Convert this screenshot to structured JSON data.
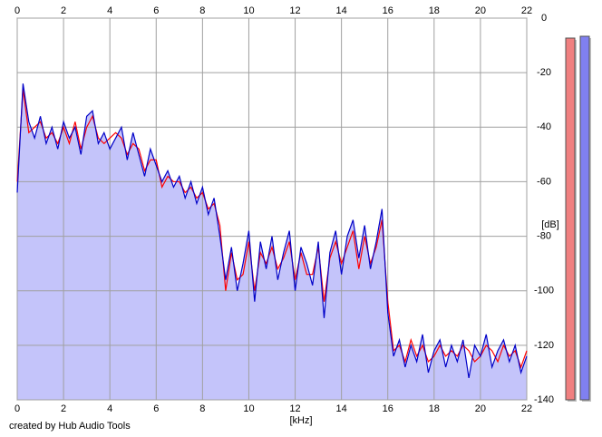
{
  "chart_data": {
    "type": "line",
    "x_label": "[kHz]",
    "y_label": "[dB]",
    "footer": "created by Hub Audio Tools",
    "xlim": [
      0,
      22
    ],
    "xticks": [
      0,
      2,
      4,
      6,
      8,
      10,
      12,
      14,
      16,
      18,
      20,
      22
    ],
    "ylim": [
      -140,
      0
    ],
    "yticks": [
      0,
      -20,
      -40,
      -60,
      -80,
      -100,
      -120,
      -140
    ],
    "grid": true,
    "area_color": "#c4c4fa",
    "x": [
      0,
      0.25,
      0.5,
      0.75,
      1,
      1.25,
      1.5,
      1.75,
      2,
      2.25,
      2.5,
      2.75,
      3,
      3.25,
      3.5,
      3.75,
      4,
      4.25,
      4.5,
      4.75,
      5,
      5.25,
      5.5,
      5.75,
      6,
      6.25,
      6.5,
      6.75,
      7,
      7.25,
      7.5,
      7.75,
      8,
      8.25,
      8.5,
      8.75,
      9,
      9.25,
      9.5,
      9.75,
      10,
      10.25,
      10.5,
      10.75,
      11,
      11.25,
      11.5,
      11.75,
      12,
      12.25,
      12.5,
      12.75,
      13,
      13.25,
      13.5,
      13.75,
      14,
      14.25,
      14.5,
      14.75,
      15,
      15.25,
      15.5,
      15.75,
      16,
      16.25,
      16.5,
      16.75,
      17,
      17.25,
      17.5,
      17.75,
      18,
      18.25,
      18.5,
      18.75,
      19,
      19.25,
      19.5,
      19.75,
      20,
      20.25,
      20.5,
      20.75,
      21,
      21.25,
      21.5,
      21.75,
      22
    ],
    "series": [
      {
        "color": "#ff0000",
        "values": [
          -60,
          -26,
          -42,
          -40,
          -38,
          -44,
          -42,
          -46,
          -40,
          -46,
          -38,
          -48,
          -40,
          -36,
          -44,
          -46,
          -44,
          -42,
          -44,
          -50,
          -46,
          -48,
          -56,
          -52,
          -52,
          -62,
          -58,
          -60,
          -60,
          -64,
          -62,
          -66,
          -64,
          -70,
          -68,
          -76,
          -100,
          -86,
          -96,
          -94,
          -82,
          -100,
          -86,
          -90,
          -84,
          -92,
          -88,
          -82,
          -96,
          -86,
          -94,
          -94,
          -84,
          -104,
          -88,
          -82,
          -90,
          -84,
          -78,
          -92,
          -80,
          -90,
          -84,
          -74,
          -104,
          -122,
          -120,
          -126,
          -118,
          -124,
          -120,
          -126,
          -124,
          -120,
          -124,
          -122,
          -124,
          -120,
          -122,
          -126,
          -124,
          -120,
          -122,
          -126,
          -120,
          -124,
          -122,
          -128,
          -122
        ]
      },
      {
        "color": "#0000c8",
        "values": [
          -64,
          -24,
          -38,
          -44,
          -36,
          -46,
          -40,
          -48,
          -38,
          -44,
          -40,
          -50,
          -36,
          -34,
          -46,
          -42,
          -48,
          -44,
          -40,
          -52,
          -42,
          -50,
          -58,
          -48,
          -54,
          -60,
          -56,
          -62,
          -58,
          -66,
          -60,
          -68,
          -62,
          -72,
          -66,
          -80,
          -96,
          -84,
          -100,
          -90,
          -78,
          -104,
          -82,
          -92,
          -80,
          -96,
          -86,
          -78,
          -100,
          -84,
          -90,
          -98,
          -82,
          -110,
          -86,
          -78,
          -94,
          -80,
          -74,
          -88,
          -76,
          -92,
          -82,
          -70,
          -108,
          -124,
          -118,
          -128,
          -120,
          -126,
          -116,
          -130,
          -122,
          -118,
          -128,
          -120,
          -126,
          -118,
          -132,
          -120,
          -124,
          -116,
          -128,
          -122,
          -118,
          -126,
          -120,
          -130,
          -124
        ]
      }
    ]
  }
}
